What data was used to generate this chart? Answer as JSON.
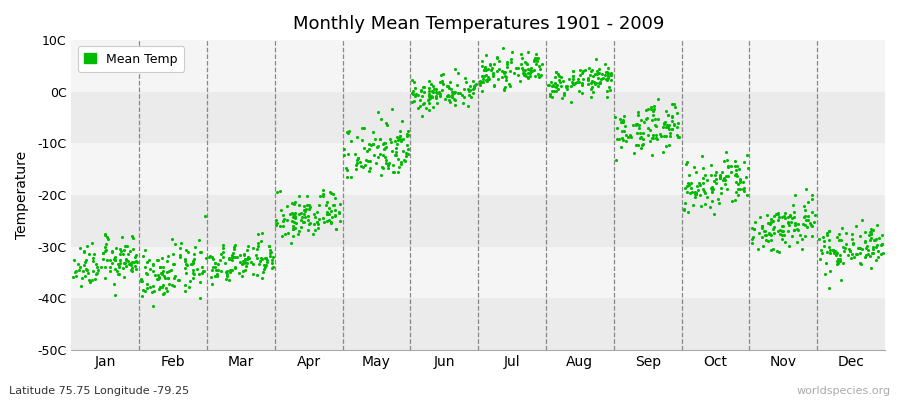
{
  "title": "Monthly Mean Temperatures 1901 - 2009",
  "ylabel": "Temperature",
  "subtitle": "Latitude 75.75 Longitude -79.25",
  "watermark": "worldspecies.org",
  "legend_label": "Mean Temp",
  "ylim": [
    -50,
    10
  ],
  "yticks": [
    -50,
    -40,
    -30,
    -20,
    -10,
    0,
    10
  ],
  "ytick_labels": [
    "-50C",
    "-40C",
    "-30C",
    "-20C",
    "-10C",
    "0C",
    "10C"
  ],
  "months": [
    "Jan",
    "Feb",
    "Mar",
    "Apr",
    "May",
    "Jun",
    "Jul",
    "Aug",
    "Sep",
    "Oct",
    "Nov",
    "Dec"
  ],
  "mean_temps": [
    -33,
    -35,
    -33,
    -24,
    -11,
    0,
    4,
    2,
    -7,
    -18,
    -26,
    -30
  ],
  "temp_spreads": [
    4.0,
    4.5,
    3.5,
    4.0,
    5.5,
    3.0,
    2.5,
    2.5,
    4.0,
    5.0,
    4.5,
    4.0
  ],
  "dot_color": "#00bb00",
  "background_color": "#ffffff",
  "plot_bg_color": "#ffffff",
  "band_color_dark": "#ebebeb",
  "band_color_light": "#f5f5f5",
  "n_points": 109,
  "figsize": [
    9.0,
    4.0
  ],
  "dpi": 100
}
